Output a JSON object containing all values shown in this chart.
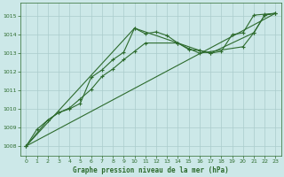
{
  "title": "Graphe pression niveau de la mer (hPa)",
  "bg_color": "#cce8e8",
  "grid_color": "#aacccc",
  "line_color": "#2d6b2d",
  "xlim": [
    -0.5,
    23.5
  ],
  "ylim": [
    1007.5,
    1015.7
  ],
  "yticks": [
    1008,
    1009,
    1010,
    1011,
    1012,
    1013,
    1014,
    1015
  ],
  "xticks": [
    0,
    1,
    2,
    3,
    4,
    5,
    6,
    7,
    8,
    9,
    10,
    11,
    12,
    13,
    14,
    15,
    16,
    17,
    18,
    19,
    20,
    21,
    22,
    23
  ],
  "series1_x": [
    0,
    1,
    2,
    3,
    4,
    5,
    6,
    7,
    8,
    9,
    10,
    11,
    12,
    13,
    14,
    15,
    16,
    17,
    18,
    19,
    20,
    21,
    22,
    23
  ],
  "series1_y": [
    1008.0,
    1008.9,
    1009.4,
    1009.8,
    1010.0,
    1010.3,
    1011.7,
    1012.1,
    1012.65,
    1013.05,
    1014.35,
    1014.05,
    1014.15,
    1013.95,
    1013.55,
    1013.2,
    1013.15,
    1013.0,
    1013.1,
    1014.0,
    1014.1,
    1015.05,
    1015.1,
    1015.15
  ],
  "series2_x": [
    0,
    2,
    3,
    4,
    5,
    6,
    7,
    8,
    9,
    10,
    11,
    14,
    15,
    16,
    20,
    21,
    22,
    23
  ],
  "series2_y": [
    1008.0,
    1009.4,
    1009.8,
    1010.05,
    1010.55,
    1011.05,
    1011.75,
    1012.15,
    1012.65,
    1013.1,
    1013.55,
    1013.55,
    1013.25,
    1013.0,
    1013.35,
    1014.1,
    1015.05,
    1015.15
  ],
  "series3_x": [
    0,
    10,
    14,
    16,
    17,
    21,
    22,
    23
  ],
  "series3_y": [
    1008.0,
    1014.35,
    1013.55,
    1013.15,
    1013.0,
    1014.1,
    1015.05,
    1015.15
  ],
  "series4_x": [
    0,
    23
  ],
  "series4_y": [
    1008.0,
    1015.15
  ]
}
